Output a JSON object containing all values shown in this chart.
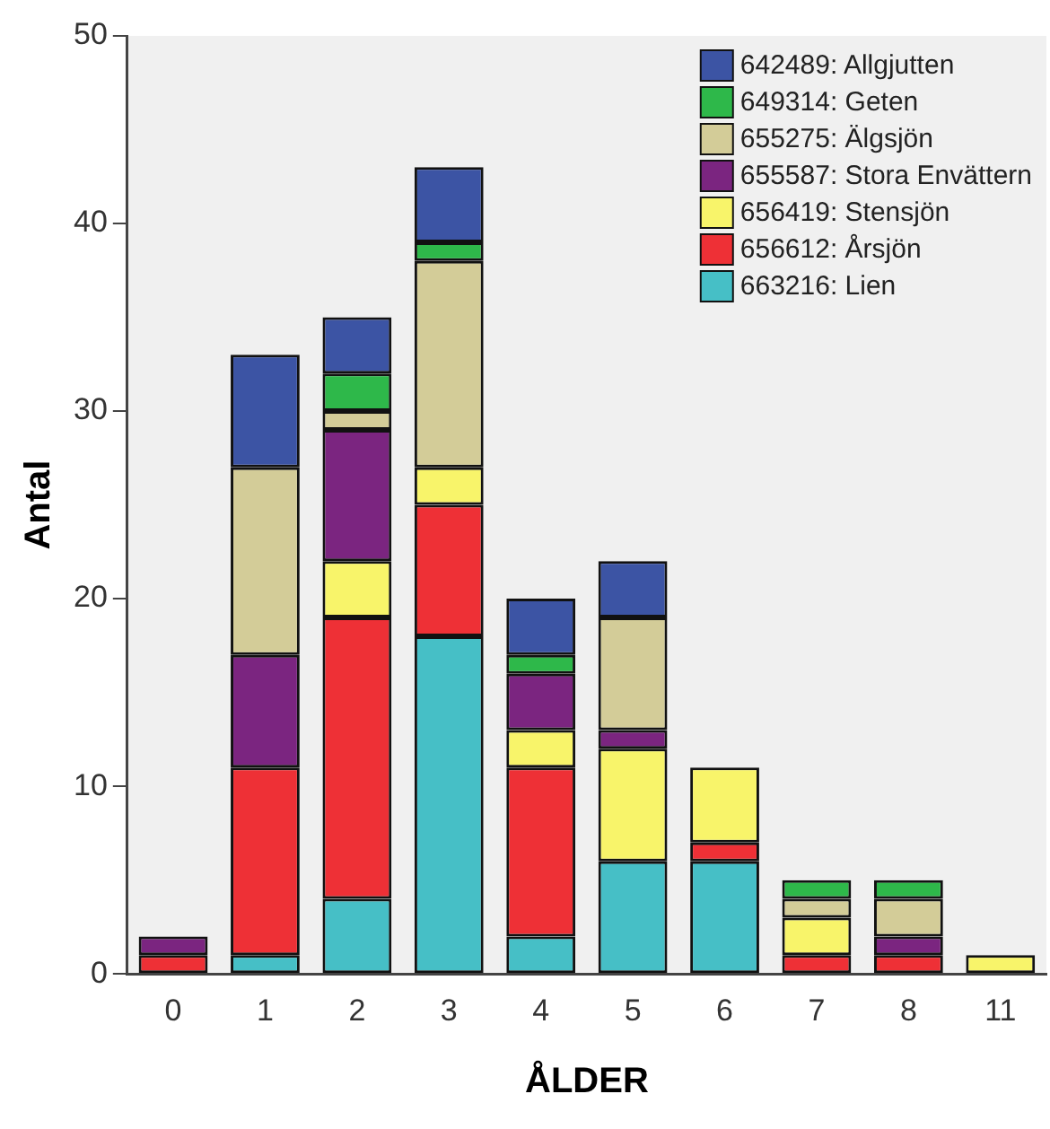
{
  "chart_data": {
    "type": "bar",
    "stacked": true,
    "xlabel": "ÅLDER",
    "ylabel": "Antal",
    "categories": [
      "0",
      "1",
      "2",
      "3",
      "4",
      "5",
      "6",
      "7",
      "8",
      "11"
    ],
    "ylim": [
      0,
      50
    ],
    "yticks": [
      0,
      10,
      20,
      30,
      40,
      50
    ],
    "grid": false,
    "legend": "top right",
    "series": [
      {
        "name": "663216: Lien",
        "color": "#46bfc6",
        "values": [
          0,
          1,
          4,
          18,
          2,
          6,
          6,
          0,
          0,
          0
        ]
      },
      {
        "name": "656612: Årsjön",
        "color": "#ee3036",
        "values": [
          1,
          10,
          15,
          7,
          9,
          0,
          1,
          1,
          1,
          0
        ]
      },
      {
        "name": "656419: Stensjön",
        "color": "#f8f46a",
        "values": [
          0,
          0,
          3,
          2,
          2,
          6,
          4,
          2,
          0,
          1
        ]
      },
      {
        "name": "655587: Stora Envättern",
        "color": "#7b2580",
        "values": [
          1,
          6,
          7,
          0,
          3,
          1,
          0,
          0,
          1,
          0
        ]
      },
      {
        "name": "655275: Älgsjön",
        "color": "#d3cc98",
        "values": [
          0,
          10,
          1,
          11,
          0,
          6,
          0,
          1,
          2,
          0
        ]
      },
      {
        "name": "649314: Geten",
        "color": "#2eb84a",
        "values": [
          0,
          0,
          2,
          1,
          1,
          0,
          0,
          1,
          1,
          0
        ]
      },
      {
        "name": "642489: Allgjutten",
        "color": "#3c54a4",
        "values": [
          0,
          6,
          3,
          4,
          3,
          3,
          0,
          0,
          0,
          0
        ]
      }
    ]
  }
}
